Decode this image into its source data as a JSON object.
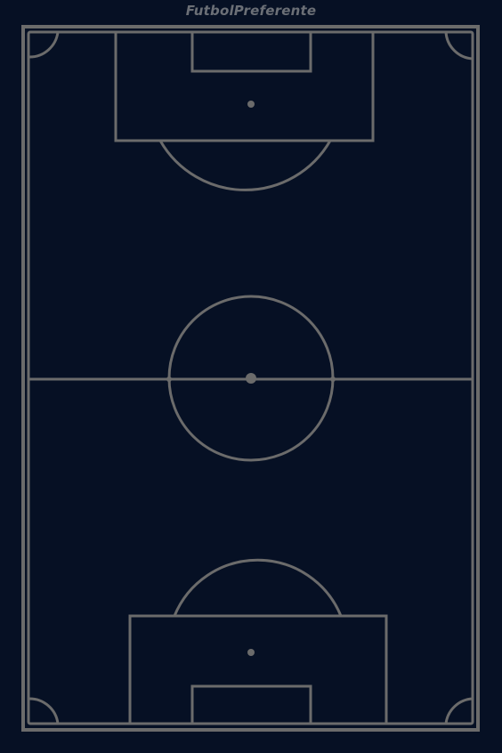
{
  "brand": {
    "name": "FutbolPreferente"
  },
  "colors": {
    "background": "#061024",
    "lines": "#6b6b6b",
    "brand_text": "#6b6f76"
  },
  "pitch": {
    "orientation": "vertical",
    "elements": [
      "outer-border",
      "halfway-line",
      "center-circle",
      "center-spot",
      "top-penalty-area",
      "top-goal-area",
      "top-penalty-spot",
      "top-penalty-arc",
      "bottom-penalty-area",
      "bottom-goal-area",
      "bottom-penalty-spot",
      "bottom-penalty-arc",
      "corner-arcs"
    ]
  }
}
